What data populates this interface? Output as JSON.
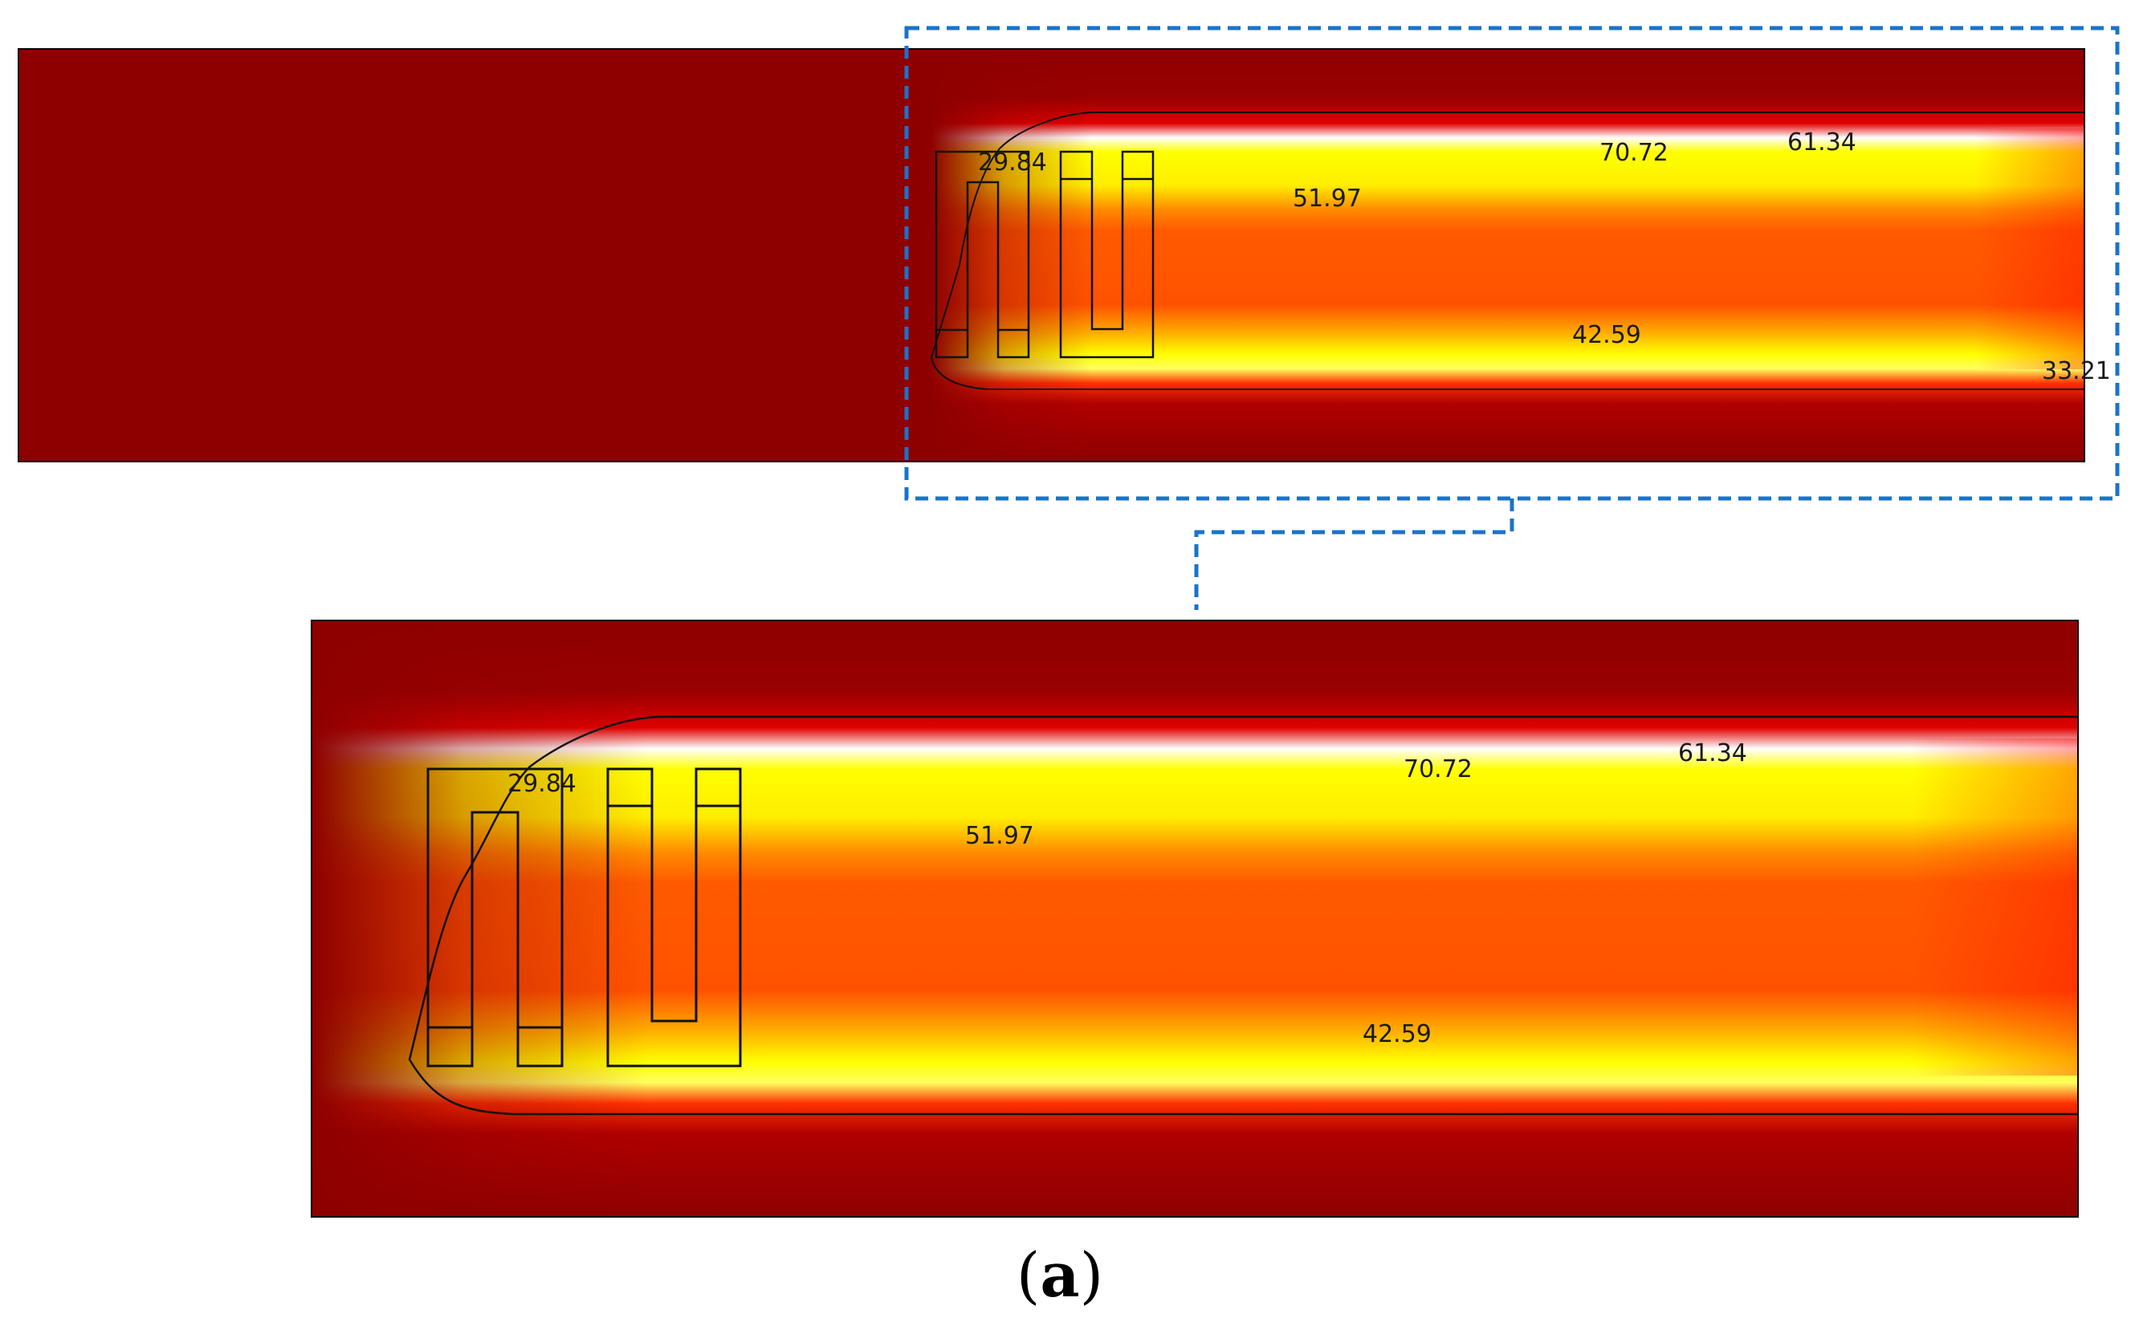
{
  "figure": {
    "caption_open": "(",
    "caption_letter": "a",
    "caption_close": ")"
  },
  "overview_panel": {
    "contour_labels": {
      "l_2984": "29.84",
      "l_7072": "70.72",
      "l_6134": "61.34",
      "l_5197": "51.97",
      "l_4259": "42.59",
      "l_3321": "33.21"
    }
  },
  "zoom_panel": {
    "contour_labels": {
      "l_2984": "29.84",
      "l_7072": "70.72",
      "l_6134": "61.34",
      "l_5197": "51.97",
      "l_4259": "42.59"
    }
  },
  "colors": {
    "background_field": "#8e0000",
    "hot_core": "#ffff00",
    "warm_band": "#ff5a00",
    "zoom_box": "#1a73c8",
    "outline": "#111111"
  }
}
